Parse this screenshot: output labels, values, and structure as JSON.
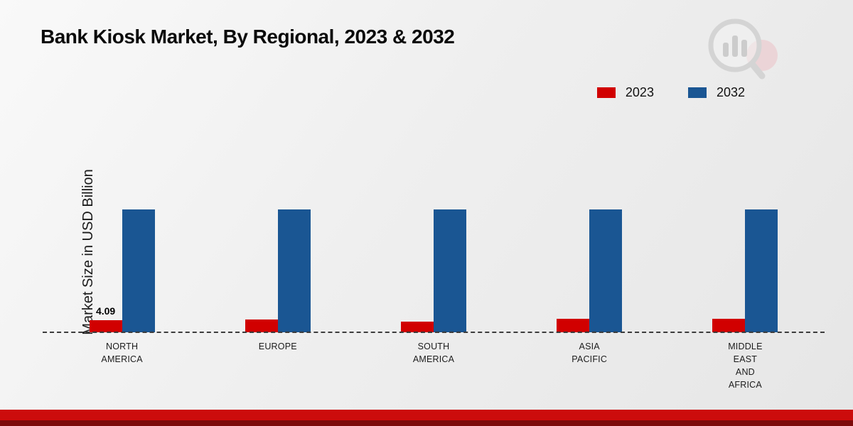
{
  "chart_data": {
    "type": "bar",
    "title": "Bank Kiosk Market, By Regional, 2023 & 2032",
    "ylabel": "Market Size in USD Billion",
    "xlabel": "",
    "categories": [
      "North America",
      "Europe",
      "South America",
      "Asia Pacific",
      "Middle East and Africa"
    ],
    "category_display_lines": [
      [
        "NORTH",
        "AMERICA"
      ],
      [
        "EUROPE"
      ],
      [
        "SOUTH",
        "AMERICA"
      ],
      [
        "ASIA",
        "PACIFIC"
      ],
      [
        "MIDDLE",
        "EAST",
        "AND",
        "AFRICA"
      ]
    ],
    "series": [
      {
        "name": "2023",
        "color": "#d10000",
        "values": [
          4.09,
          4.3,
          3.7,
          4.6,
          4.6
        ]
      },
      {
        "name": "2032",
        "color": "#1a5693",
        "values": [
          41.5,
          41.5,
          41.5,
          41.5,
          41.5
        ]
      }
    ],
    "value_labels": [
      {
        "category": "North America",
        "series": "2023",
        "text": "4.09"
      }
    ],
    "grid": false,
    "baseline_style": "dashed",
    "legend_position": "top-right",
    "yaxis_ticks_visible": false
  },
  "footer": {
    "stripe_color": "#cc0c0c",
    "stripe_dark_color": "#7d0b0b"
  }
}
